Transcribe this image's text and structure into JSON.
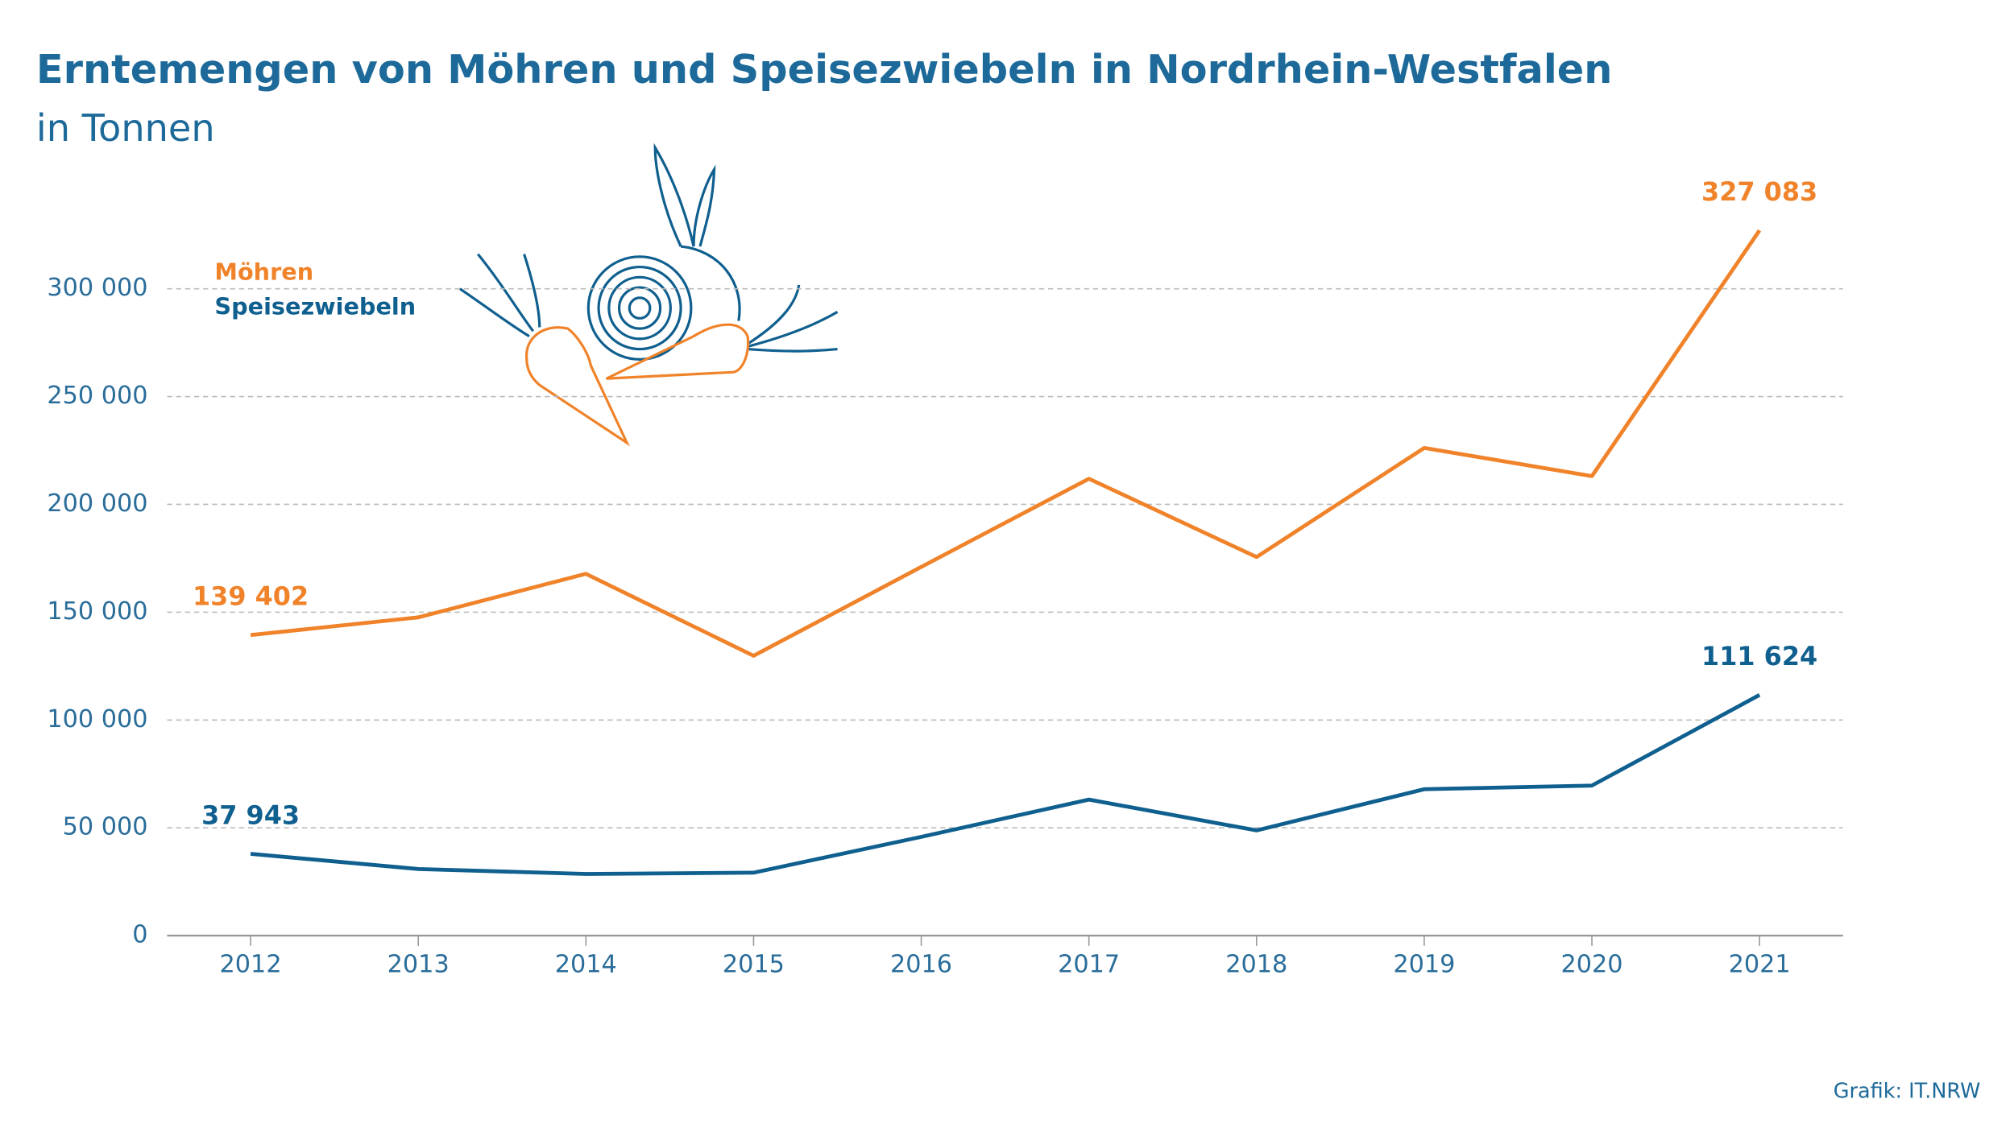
{
  "chart_data": {
    "type": "line",
    "title": "Erntemengen von Möhren und Speisezwiebeln in Nordrhein-Westfalen",
    "subtitle": "in Tonnen",
    "source": "Grafik: IT.NRW",
    "categories": [
      "2012",
      "2013",
      "2014",
      "2015",
      "2016",
      "2017",
      "2018",
      "2019",
      "2020",
      "2021"
    ],
    "series": [
      {
        "name": "Möhren",
        "color": "#f0832a",
        "values": [
          139402,
          147600,
          167800,
          129800,
          171000,
          211900,
          175600,
          226200,
          213100,
          327083
        ],
        "value_labels": [
          "139 402",
          null,
          null,
          null,
          null,
          null,
          null,
          null,
          null,
          "327 083"
        ]
      },
      {
        "name": "Speisezwiebeln",
        "color": "#0f5f8f",
        "values": [
          37943,
          30900,
          28600,
          29200,
          45800,
          63100,
          48800,
          67900,
          69600,
          111624
        ],
        "value_labels": [
          "37 943",
          null,
          null,
          null,
          null,
          null,
          null,
          null,
          null,
          "111 624"
        ]
      }
    ],
    "ylim": [
      0,
      300000
    ],
    "yticks": [
      0,
      {
        "value": 50000,
        "label": "50 000"
      },
      {
        "value": 100000,
        "label": "100 000"
      },
      {
        "value": 150000,
        "label": "150 000"
      },
      {
        "value": 200000,
        "label": "200 000"
      },
      {
        "value": 250000,
        "label": "250 000"
      },
      {
        "value": 300000,
        "label": "300 000"
      }
    ],
    "grid": true
  }
}
